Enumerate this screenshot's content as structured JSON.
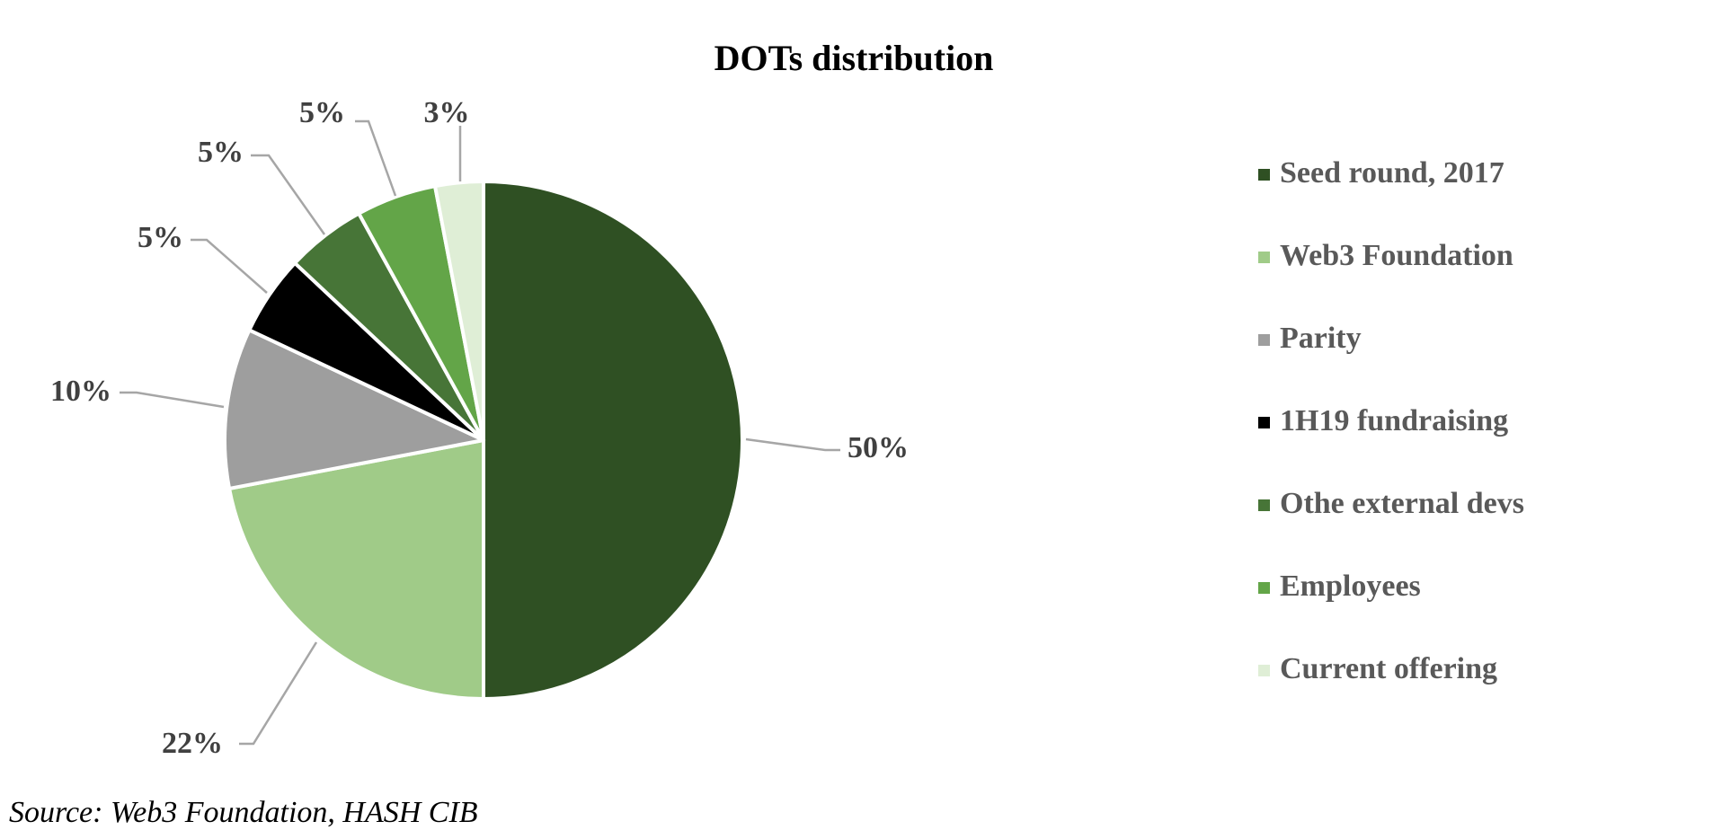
{
  "chart_data": {
    "type": "pie",
    "title": "DOTs distribution",
    "slices": [
      {
        "label": "Seed round, 2017",
        "value": 50,
        "display": "50%",
        "color": "#2f5023"
      },
      {
        "label": "Web3 Foundation",
        "value": 22,
        "display": "22%",
        "color": "#a0cb88"
      },
      {
        "label": "Parity",
        "value": 10,
        "display": "10%",
        "color": "#9e9e9e"
      },
      {
        "label": "1H19 fundraising",
        "value": 5,
        "display": "5%",
        "color": "#000000"
      },
      {
        "label": "Othe external devs",
        "value": 5,
        "display": "5%",
        "color": "#477537"
      },
      {
        "label": "Employees",
        "value": 5,
        "display": "5%",
        "color": "#63a548"
      },
      {
        "label": "Current offering",
        "value": 3,
        "display": "3%",
        "color": "#dfeed6"
      }
    ],
    "legend_position": "right",
    "start_angle": "12 o'clock",
    "direction": "clockwise"
  },
  "source": "Source: Web3 Foundation, HASH CIB"
}
